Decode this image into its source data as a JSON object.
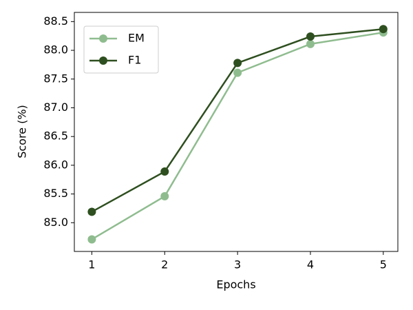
{
  "chart_data": {
    "type": "line",
    "x_label": "Epochs",
    "y_label": "Score (%)",
    "x": [
      1,
      2,
      3,
      4,
      5
    ],
    "series": [
      {
        "name": "EM",
        "color": "#8fbc8f",
        "values": [
          84.71,
          85.46,
          87.61,
          88.11,
          88.31
        ]
      },
      {
        "name": "F1",
        "color": "#2e4f1f",
        "values": [
          85.19,
          85.89,
          87.78,
          88.24,
          88.37
        ]
      }
    ],
    "xlim": [
      0.76,
      5.2
    ],
    "xticks": [
      1,
      2,
      3,
      4,
      5
    ],
    "ylim": [
      84.5,
      88.66
    ],
    "yticks": [
      {
        "value": 85,
        "label": "85.0"
      },
      85.5,
      {
        "value": 86,
        "label": "86.0"
      },
      86.5,
      {
        "value": 87,
        "label": "87.0"
      },
      87.5,
      {
        "value": 88,
        "label": "88.0"
      },
      88.5
    ],
    "legend": "upper left",
    "grid": false
  }
}
